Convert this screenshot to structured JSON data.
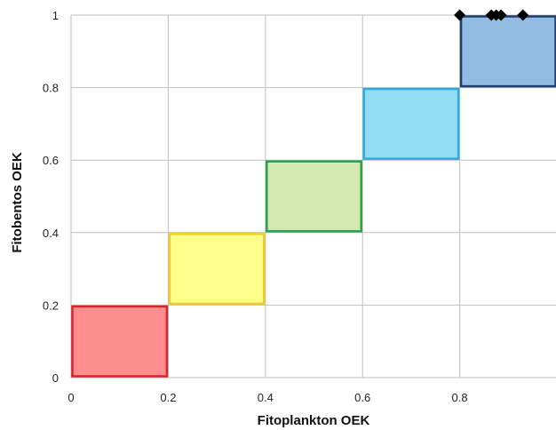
{
  "chart_data": {
    "type": "scatter",
    "xlabel": "Fitoplankton OEK",
    "ylabel": "Fitobentos OEK",
    "xlim": [
      0,
      1
    ],
    "ylim": [
      0,
      1
    ],
    "grid": true,
    "x_ticks": [
      {
        "value": 0,
        "label": "0"
      },
      {
        "value": 0.2,
        "label": "0.2"
      },
      {
        "value": 0.4,
        "label": "0.4"
      },
      {
        "value": 0.6,
        "label": "0.6"
      },
      {
        "value": 0.8,
        "label": "0.8"
      }
    ],
    "y_ticks": [
      {
        "value": 0,
        "label": "0"
      },
      {
        "value": 0.2,
        "label": "0.2"
      },
      {
        "value": 0.4,
        "label": "0.4"
      },
      {
        "value": 0.6,
        "label": "0.6"
      },
      {
        "value": 0.8,
        "label": "0.8"
      },
      {
        "value": 1,
        "label": "1"
      }
    ],
    "class_boxes": [
      {
        "x": [
          0,
          0.2
        ],
        "y": [
          0,
          0.2
        ],
        "fill": "#ff8f8f",
        "stroke": "#d9242a"
      },
      {
        "x": [
          0.2,
          0.4
        ],
        "y": [
          0.2,
          0.4
        ],
        "fill": "#ffff8a",
        "stroke": "#f2c82a"
      },
      {
        "x": [
          0.4,
          0.6
        ],
        "y": [
          0.4,
          0.6
        ],
        "fill": "#d4e9b2",
        "stroke": "#2aa050"
      },
      {
        "x": [
          0.6,
          0.8
        ],
        "y": [
          0.6,
          0.8
        ],
        "fill": "#92dcf6",
        "stroke": "#28aee0"
      },
      {
        "x": [
          0.8,
          1.0
        ],
        "y": [
          0.8,
          1.0
        ],
        "fill": "#92bde2",
        "stroke": "#1f3d6e"
      }
    ],
    "points": [
      {
        "x": 0.8,
        "y": 1.0
      },
      {
        "x": 0.865,
        "y": 1.0
      },
      {
        "x": 0.875,
        "y": 1.0
      },
      {
        "x": 0.885,
        "y": 1.0
      },
      {
        "x": 0.93,
        "y": 1.0
      }
    ],
    "marker": "diamond",
    "marker_color": "#000000"
  }
}
